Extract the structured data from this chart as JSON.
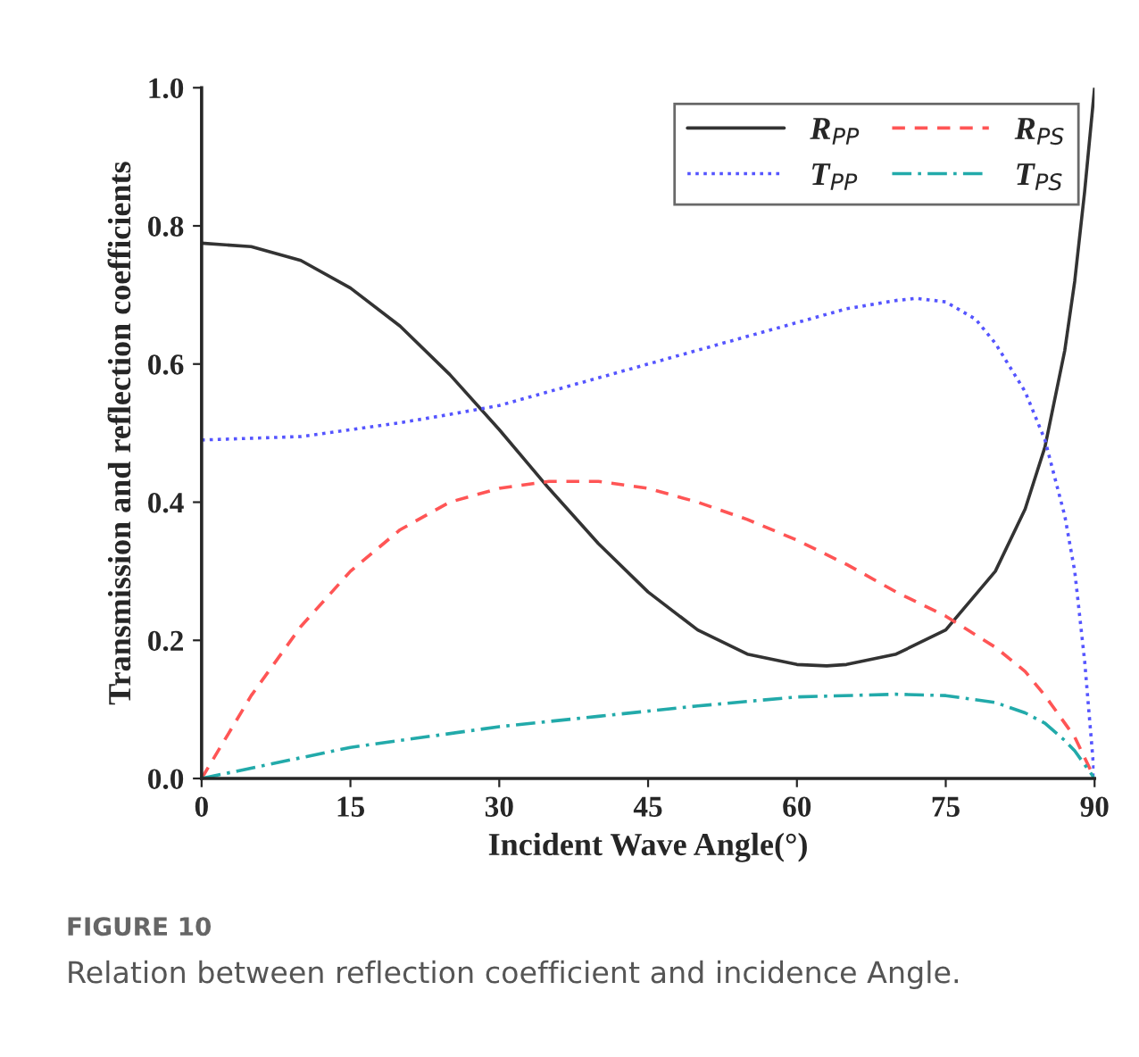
{
  "chart_data": {
    "type": "line",
    "xlabel": "Incident Wave Angle(°)",
    "ylabel": "Transmission and reflection coefficients",
    "xlim": [
      0,
      90
    ],
    "xticks": [
      0,
      15,
      30,
      45,
      60,
      75,
      90
    ],
    "ylim": [
      0,
      1.0
    ],
    "yticks": [
      {
        "value": 0,
        "label": "0.0"
      },
      {
        "value": 0.2,
        "label": "0.2"
      },
      {
        "value": 0.4,
        "label": "0.4"
      },
      {
        "value": 0.6,
        "label": "0.6"
      },
      {
        "value": 0.8,
        "label": "0.8"
      },
      {
        "value": 1.0,
        "label": "1.0"
      }
    ],
    "grid": false,
    "legend": "top right",
    "marker": "none",
    "series": [
      {
        "name": "R$_{PP}$",
        "color": "#333333",
        "line_style": "solid",
        "x": [
          0,
          5,
          10,
          15,
          20,
          25,
          30,
          35,
          40,
          45,
          50,
          55,
          60,
          63,
          65,
          70,
          75,
          80,
          83,
          85,
          87,
          88,
          89,
          90
        ],
        "values": [
          0.775,
          0.77,
          0.75,
          0.71,
          0.655,
          0.585,
          0.505,
          0.42,
          0.34,
          0.27,
          0.215,
          0.18,
          0.165,
          0.163,
          0.165,
          0.18,
          0.215,
          0.3,
          0.39,
          0.48,
          0.62,
          0.72,
          0.85,
          1.0
        ]
      },
      {
        "name": "T$_{PP}$",
        "color": "#5555ff",
        "line_style": "dotted",
        "x": [
          0,
          10,
          15,
          20,
          25,
          30,
          35,
          40,
          45,
          50,
          55,
          60,
          65,
          70,
          72,
          75,
          78,
          80,
          83,
          85,
          87,
          88,
          89,
          90
        ],
        "values": [
          0.49,
          0.495,
          0.505,
          0.515,
          0.527,
          0.54,
          0.56,
          0.58,
          0.6,
          0.62,
          0.64,
          0.66,
          0.68,
          0.692,
          0.695,
          0.69,
          0.665,
          0.63,
          0.56,
          0.49,
          0.38,
          0.3,
          0.17,
          0.0
        ]
      },
      {
        "name": "R$_{PS}$",
        "color": "#ff5555",
        "line_style": "dashed",
        "x": [
          0,
          5,
          10,
          15,
          20,
          25,
          30,
          35,
          40,
          45,
          50,
          55,
          60,
          65,
          70,
          75,
          80,
          83,
          85,
          87,
          88,
          89,
          90
        ],
        "values": [
          0,
          0.12,
          0.22,
          0.3,
          0.36,
          0.4,
          0.42,
          0.43,
          0.43,
          0.42,
          0.4,
          0.375,
          0.345,
          0.31,
          0.27,
          0.235,
          0.19,
          0.155,
          0.12,
          0.08,
          0.06,
          0.03,
          0
        ]
      },
      {
        "name": "T$_{PS}$",
        "color": "#22aaaa",
        "line_style": "dashdot",
        "x": [
          0,
          10,
          15,
          20,
          30,
          40,
          50,
          60,
          70,
          75,
          80,
          83,
          85,
          87,
          88,
          89,
          90
        ],
        "values": [
          0,
          0.03,
          0.045,
          0.055,
          0.075,
          0.09,
          0.105,
          0.118,
          0.122,
          0.12,
          0.11,
          0.095,
          0.08,
          0.055,
          0.04,
          0.02,
          0
        ]
      }
    ],
    "annotations": [
      "FIGURE 10",
      "Relation between reflection coefficient and incidence Angle."
    ]
  }
}
